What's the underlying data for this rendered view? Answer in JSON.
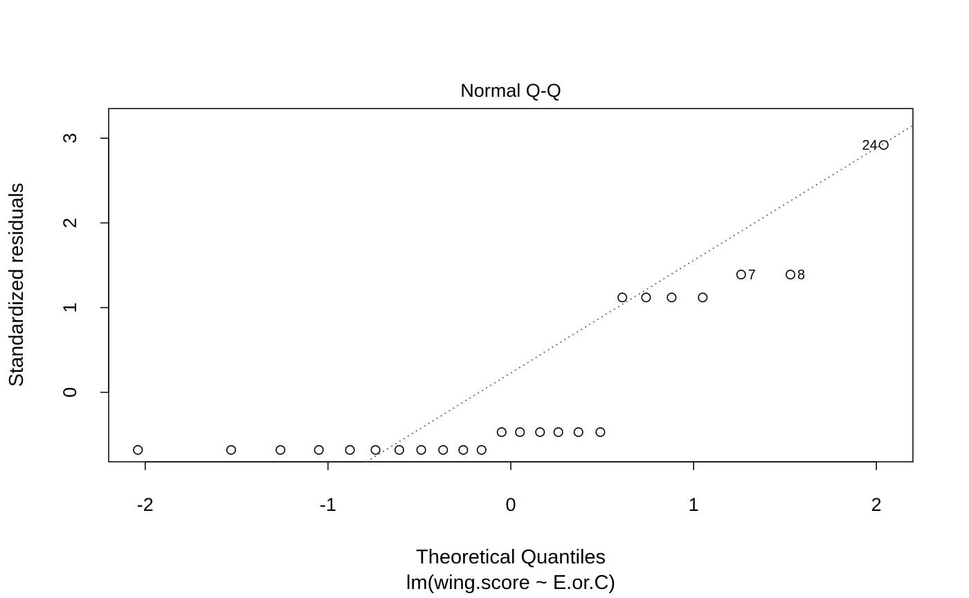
{
  "chart_data": {
    "type": "scatter",
    "title": "Normal Q-Q",
    "xlabel": "Theoretical Quantiles",
    "ylabel": "Standardized residuals",
    "subtitle": "lm(wing.score ~ E.or.C)",
    "xlim": [
      -2.2,
      2.2
    ],
    "ylim": [
      -0.82,
      3.35
    ],
    "xticks": [
      -2,
      -1,
      0,
      1,
      2
    ],
    "xtick_labels": [
      "-2",
      "-1",
      "0",
      "1",
      "2"
    ],
    "yticks": [
      0,
      1,
      2,
      3
    ],
    "ytick_labels": [
      "0",
      "1",
      "2",
      "3"
    ],
    "grid": false,
    "reference_line": {
      "style": "dotted",
      "color": "#555555",
      "x": [
        -0.79,
        2.2
      ],
      "y": [
        -0.82,
        3.15
      ]
    },
    "points": [
      {
        "x": -2.04,
        "y": -0.68
      },
      {
        "x": -1.53,
        "y": -0.68
      },
      {
        "x": -1.26,
        "y": -0.68
      },
      {
        "x": -1.05,
        "y": -0.68
      },
      {
        "x": -0.88,
        "y": -0.68
      },
      {
        "x": -0.74,
        "y": -0.68
      },
      {
        "x": -0.61,
        "y": -0.68
      },
      {
        "x": -0.49,
        "y": -0.68
      },
      {
        "x": -0.37,
        "y": -0.68
      },
      {
        "x": -0.26,
        "y": -0.68
      },
      {
        "x": -0.16,
        "y": -0.68
      },
      {
        "x": -0.05,
        "y": -0.47
      },
      {
        "x": 0.05,
        "y": -0.47
      },
      {
        "x": 0.16,
        "y": -0.47
      },
      {
        "x": 0.26,
        "y": -0.47
      },
      {
        "x": 0.37,
        "y": -0.47
      },
      {
        "x": 0.49,
        "y": -0.47
      },
      {
        "x": 0.61,
        "y": 1.12
      },
      {
        "x": 0.74,
        "y": 1.12
      },
      {
        "x": 0.88,
        "y": 1.12
      },
      {
        "x": 1.05,
        "y": 1.12
      },
      {
        "x": 1.26,
        "y": 1.39,
        "label": "7"
      },
      {
        "x": 1.53,
        "y": 1.39,
        "label": "8"
      },
      {
        "x": 2.04,
        "y": 2.92,
        "label": "24"
      }
    ]
  }
}
